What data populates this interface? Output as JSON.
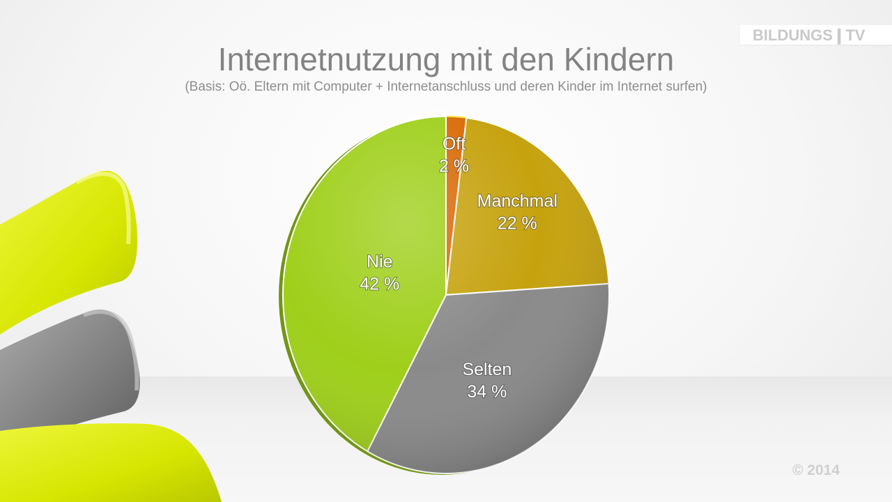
{
  "logo": {
    "text": "BILDUNGS❙TV"
  },
  "colors": {
    "oft": "#d86a06",
    "manchmal": "#c6a20e",
    "selten": "#8a8a8a",
    "nie": "#9fcf1a"
  },
  "chart_data": {
    "type": "pie",
    "title": "Internetnutzung mit den Kindern",
    "subtitle": "(Basis: Oö. Eltern mit Computer + Internetanschluss und deren Kinder im Internet surfen)",
    "unit": "%",
    "slices": [
      {
        "label": "Oft",
        "value": 2,
        "value_text": "2  %"
      },
      {
        "label": "Manchmal",
        "value": 22,
        "value_text": "22  %"
      },
      {
        "label": "Selten",
        "value": 34,
        "value_text": "34  %"
      },
      {
        "label": "Nie",
        "value": 42,
        "value_text": "42  %"
      }
    ]
  },
  "footer": {
    "copyright": "© 2014"
  }
}
